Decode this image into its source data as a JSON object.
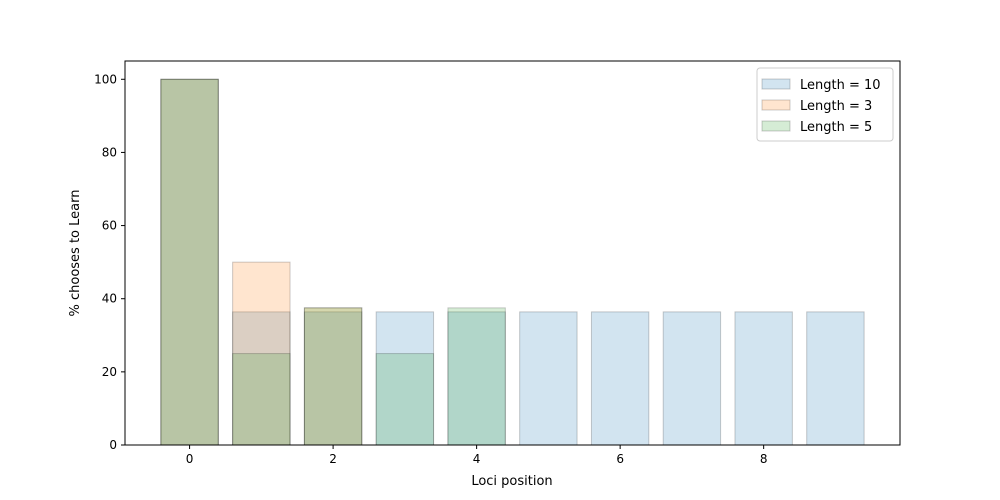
{
  "chart_data": {
    "type": "bar",
    "title": "",
    "xlabel": "Loci position",
    "ylabel": "% chooses to Learn",
    "xlim": [
      -0.9,
      9.9
    ],
    "ylim": [
      0,
      105
    ],
    "xticks": [
      "0",
      "2",
      "4",
      "6",
      "8"
    ],
    "xtick_values": [
      0,
      2,
      4,
      6,
      8
    ],
    "yticks": [
      "0",
      "20",
      "40",
      "60",
      "80",
      "100"
    ],
    "ytick_values": [
      0,
      20,
      40,
      60,
      80,
      100
    ],
    "grid": false,
    "legend_position": "top-right",
    "series": [
      {
        "name": "Length = 10",
        "color": "#1f77b4",
        "x": [
          0,
          1,
          2,
          3,
          4,
          5,
          6,
          7,
          8,
          9
        ],
        "values": [
          100,
          36.4,
          36.4,
          36.4,
          36.4,
          36.4,
          36.4,
          36.4,
          36.4,
          36.4
        ]
      },
      {
        "name": "Length = 3",
        "color": "#ff7f0e",
        "x": [
          0,
          1,
          2
        ],
        "values": [
          100,
          50,
          37.5
        ]
      },
      {
        "name": "Length = 5",
        "color": "#2ca02c",
        "x": [
          0,
          1,
          2,
          3,
          4
        ],
        "values": [
          100,
          25,
          37.5,
          25,
          37.5
        ]
      }
    ]
  }
}
